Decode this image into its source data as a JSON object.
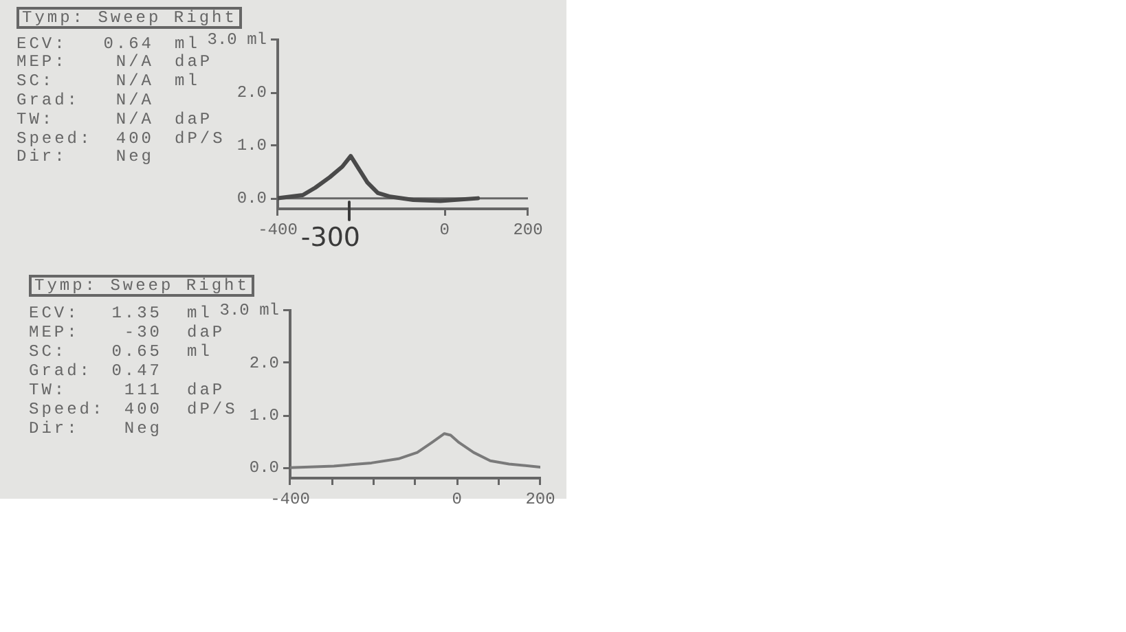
{
  "chart_data": [
    {
      "type": "other",
      "title": "Tymp: Sweep Right",
      "annotations": [
        "ECV: 0.64 ml",
        "MEP: N/A daP",
        "SC: N/A ml",
        "Grad: N/A",
        "TW: N/A daP",
        "Speed: 400 dP/S",
        "Dir: Neg"
      ]
    },
    {
      "type": "line",
      "annotations": [
        "-300"
      ],
      "x": [
        -400,
        -340,
        -310,
        -275,
        -245,
        -225,
        -205,
        -185,
        -160,
        -130,
        -75,
        -10,
        80
      ],
      "series": [
        {
          "color": "#4a4a4a",
          "values": [
            0.0,
            0.06,
            0.2,
            0.4,
            0.6,
            0.8,
            0.55,
            0.3,
            0.1,
            0.03,
            -0.03,
            -0.05,
            0.0
          ]
        }
      ],
      "xlim": [
        -400,
        200
      ],
      "xticks": [
        -400,
        0,
        200
      ],
      "ylim": [
        -0.2,
        3
      ],
      "yticks": [
        {
          "value": 0,
          "label": "0.0"
        },
        {
          "value": 1,
          "label": "1.0"
        },
        {
          "value": 2,
          "label": "2.0"
        },
        {
          "value": 3,
          "label": "3.0 ml"
        }
      ],
      "ref_lines": [
        {
          "axis": "y",
          "value": 0,
          "color": "#666666"
        }
      ],
      "marker": "none"
    },
    {
      "type": "other",
      "title": "Tymp: Sweep Right",
      "annotations": [
        "ECV: 1.35 ml",
        "MEP: -30 daP",
        "SC: 0.65 ml",
        "Grad: 0.47",
        "TW: 111 daP",
        "Speed: 400 dP/S",
        "Dir: Neg"
      ]
    },
    {
      "type": "line",
      "x": [
        -400,
        -295,
        -205,
        -140,
        -95,
        -60,
        -30,
        -15,
        5,
        40,
        80,
        125,
        200
      ],
      "series": [
        {
          "color": "#7a7a7a",
          "values": [
            0.0,
            0.03,
            0.09,
            0.17,
            0.29,
            0.48,
            0.65,
            0.62,
            0.48,
            0.29,
            0.13,
            0.07,
            0.01
          ]
        }
      ],
      "xlim": [
        -400,
        200
      ],
      "xticks": [
        -400,
        {
          "value": -300,
          "label": null
        },
        {
          "value": -200,
          "label": null
        },
        {
          "value": -100,
          "label": null
        },
        0,
        {
          "value": 100,
          "label": null
        },
        200
      ],
      "ylim": [
        -0.2,
        3
      ],
      "yticks": [
        {
          "value": 0,
          "label": "0.0"
        },
        {
          "value": 1,
          "label": "1.0"
        },
        {
          "value": 2,
          "label": "2.0"
        },
        {
          "value": 3,
          "label": "3.0 ml"
        }
      ],
      "marker": "none"
    }
  ]
}
